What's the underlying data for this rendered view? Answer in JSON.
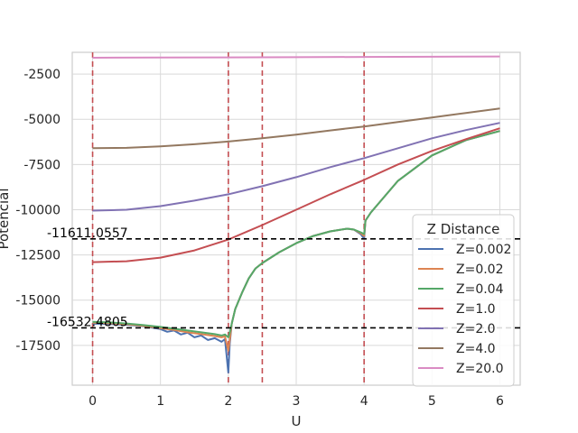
{
  "chart_data": {
    "type": "line",
    "xlabel": "U",
    "ylabel": "Potencial",
    "xlim": [
      -0.3,
      6.3
    ],
    "ylim": [
      -19700,
      -1300
    ],
    "grid": true,
    "legend": {
      "title": "Z Distance",
      "placement": "lower-right"
    },
    "x_ticks": [
      0,
      1,
      2,
      3,
      4,
      5,
      6
    ],
    "y_ticks": [
      -17500,
      -15000,
      -12500,
      -10000,
      -7500,
      -5000,
      -2500
    ],
    "vertical_lines": {
      "x": [
        0,
        2,
        2.5,
        4
      ],
      "color": "#c44e52",
      "style": "dashed"
    },
    "horizontal_lines": [
      {
        "y": -11611.0557,
        "label": "-11611.0557",
        "color": "#000000",
        "style": "dashed"
      },
      {
        "y": -16532.4805,
        "label": "-16532.4805",
        "color": "#000000",
        "style": "dashed"
      }
    ],
    "series": [
      {
        "name": "Z=0.002",
        "color": "#4c72b0",
        "x": [
          0,
          0.25,
          0.5,
          0.75,
          1.0,
          1.1,
          1.2,
          1.3,
          1.4,
          1.5,
          1.6,
          1.7,
          1.8,
          1.9,
          1.95,
          2.0,
          2.02,
          2.05,
          2.1,
          2.2,
          2.3,
          2.4,
          2.5,
          2.75,
          3.0,
          3.25,
          3.5,
          3.75,
          3.85,
          3.95,
          4.0,
          4.02,
          4.1,
          4.25,
          4.5,
          5.0,
          5.5,
          6.0
        ],
        "y": [
          -16300,
          -16320,
          -16360,
          -16440,
          -16600,
          -16750,
          -16680,
          -16900,
          -16800,
          -17050,
          -16950,
          -17200,
          -17100,
          -17300,
          -17150,
          -19000,
          -17400,
          -16300,
          -15500,
          -14600,
          -13800,
          -13250,
          -12950,
          -12350,
          -11850,
          -11450,
          -11200,
          -11050,
          -11100,
          -11350,
          -11600,
          -10600,
          -10150,
          -9500,
          -8400,
          -7000,
          -6150,
          -5650
        ]
      },
      {
        "name": "Z=0.02",
        "color": "#dd8452",
        "x": [
          0,
          0.25,
          0.5,
          0.75,
          1.0,
          1.2,
          1.4,
          1.6,
          1.8,
          1.9,
          1.95,
          2.0,
          2.02,
          2.05,
          2.1,
          2.2,
          2.3,
          2.4,
          2.5,
          2.75,
          3.0,
          3.25,
          3.5,
          3.75,
          3.85,
          3.95,
          4.0,
          4.02,
          4.1,
          4.25,
          4.5,
          5.0,
          5.5,
          6.0
        ],
        "y": [
          -16250,
          -16280,
          -16330,
          -16420,
          -16550,
          -16650,
          -16780,
          -16880,
          -16980,
          -17050,
          -17000,
          -17800,
          -17200,
          -16300,
          -15500,
          -14600,
          -13800,
          -13250,
          -12950,
          -12350,
          -11850,
          -11450,
          -11200,
          -11050,
          -11100,
          -11300,
          -11450,
          -10600,
          -10150,
          -9500,
          -8400,
          -7000,
          -6150,
          -5650
        ]
      },
      {
        "name": "Z=0.04",
        "color": "#55a868",
        "x": [
          0,
          0.25,
          0.5,
          0.75,
          1.0,
          1.2,
          1.4,
          1.6,
          1.8,
          1.9,
          1.95,
          2.0,
          2.02,
          2.05,
          2.1,
          2.2,
          2.3,
          2.4,
          2.5,
          2.75,
          3.0,
          3.25,
          3.5,
          3.75,
          3.85,
          3.95,
          4.0,
          4.02,
          4.1,
          4.25,
          4.5,
          5.0,
          5.5,
          6.0
        ],
        "y": [
          -16200,
          -16230,
          -16290,
          -16380,
          -16480,
          -16580,
          -16680,
          -16780,
          -16880,
          -16950,
          -16900,
          -17050,
          -16800,
          -16300,
          -15500,
          -14600,
          -13800,
          -13250,
          -12950,
          -12350,
          -11850,
          -11450,
          -11200,
          -11050,
          -11100,
          -11250,
          -11350,
          -10600,
          -10150,
          -9500,
          -8400,
          -7000,
          -6150,
          -5650
        ]
      },
      {
        "name": "Z=1.0",
        "color": "#c44e52",
        "x": [
          0,
          0.5,
          1.0,
          1.5,
          2.0,
          2.5,
          3.0,
          3.5,
          4.0,
          4.5,
          5.0,
          5.5,
          6.0
        ],
        "y": [
          -12900,
          -12850,
          -12650,
          -12250,
          -11650,
          -10850,
          -10000,
          -9150,
          -8350,
          -7500,
          -6750,
          -6100,
          -5500
        ]
      },
      {
        "name": "Z=2.0",
        "color": "#8172b3",
        "x": [
          0,
          0.5,
          1.0,
          1.5,
          2.0,
          2.5,
          3.0,
          3.5,
          4.0,
          4.5,
          5.0,
          5.5,
          6.0
        ],
        "y": [
          -10050,
          -10000,
          -9800,
          -9500,
          -9150,
          -8700,
          -8200,
          -7650,
          -7150,
          -6600,
          -6050,
          -5600,
          -5200
        ]
      },
      {
        "name": "Z=4.0",
        "color": "#937860",
        "x": [
          0,
          0.5,
          1.0,
          1.5,
          2.0,
          2.5,
          3.0,
          3.5,
          4.0,
          4.5,
          5.0,
          5.5,
          6.0
        ],
        "y": [
          -6600,
          -6580,
          -6500,
          -6380,
          -6230,
          -6050,
          -5850,
          -5620,
          -5400,
          -5150,
          -4900,
          -4650,
          -4400
        ]
      },
      {
        "name": "Z=20.0",
        "color": "#da8bc3",
        "x": [
          0,
          1,
          2,
          3,
          4,
          5,
          6
        ],
        "y": [
          -1600,
          -1590,
          -1580,
          -1570,
          -1555,
          -1545,
          -1530
        ]
      }
    ]
  }
}
